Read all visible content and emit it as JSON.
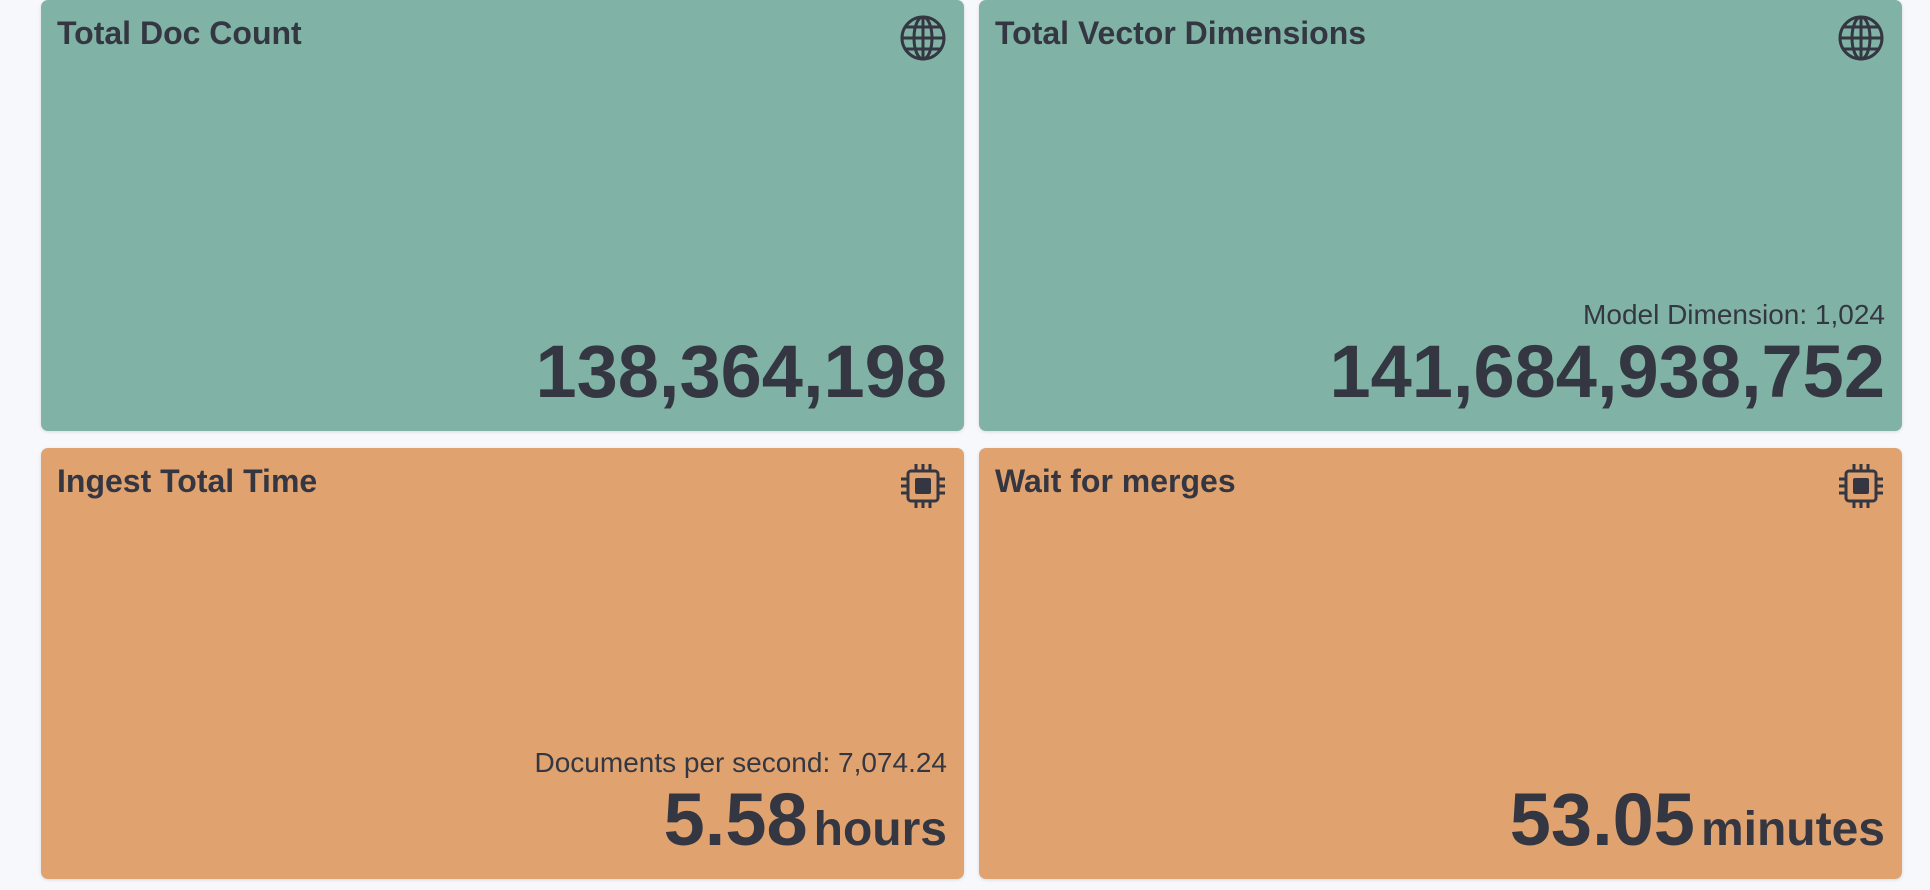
{
  "cards": [
    {
      "title": "Total Doc Count",
      "value": "138,364,198"
    },
    {
      "title": "Total Vector Dimensions",
      "subtitle": "Model Dimension: 1,024",
      "value": "141,684,938,752"
    },
    {
      "title": "Ingest Total Time",
      "subtitle": "Documents per second: 7,074.24",
      "value": "5.58",
      "unit": "hours"
    },
    {
      "title": "Wait for merges",
      "value": "53.05",
      "unit": "minutes"
    }
  ]
}
